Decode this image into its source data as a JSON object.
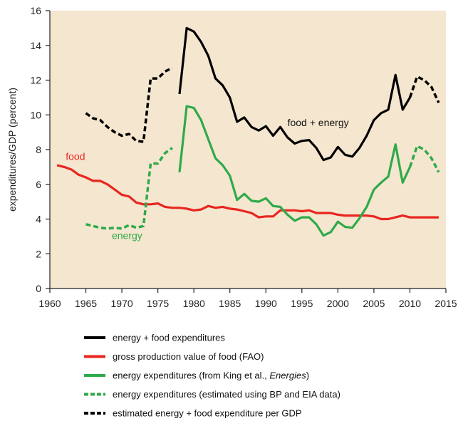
{
  "chart_data": {
    "type": "line",
    "title": "",
    "xlabel": "",
    "ylabel": "expenditures/GDP (percent)",
    "ylim": [
      0,
      16
    ],
    "yticks": [
      0,
      2,
      4,
      6,
      8,
      10,
      12,
      14,
      16
    ],
    "xticks": [
      1960,
      1965,
      1970,
      1975,
      1980,
      1985,
      1990,
      1995,
      2000,
      2005,
      2010,
      2015
    ],
    "xtick_labels": [
      "1960",
      "1965",
      "1970",
      "1975",
      "1980",
      "1985",
      "1990",
      "1995",
      "2000",
      "2005",
      "2010",
      "2015"
    ],
    "plot_background": "#f5e6cf",
    "grid": false,
    "annotations": [
      {
        "id": "food",
        "text": "food",
        "x": 1962.2,
        "y": 7.4,
        "color": "#e8261f"
      },
      {
        "id": "energy",
        "text": "energy",
        "x": 1968.6,
        "y": 2.85,
        "color": "#2eaa4a"
      },
      {
        "id": "food-energy",
        "text": "food + energy",
        "x": 1993,
        "y": 9.35,
        "color": "#111111"
      }
    ],
    "series": [
      {
        "id": "energy-food-solid",
        "name": "energy + food expenditures",
        "color": "#000000",
        "dashed": false,
        "points": [
          [
            1978,
            11.2
          ],
          [
            1979,
            15.0
          ],
          [
            1980,
            14.8
          ],
          [
            1981,
            14.2
          ],
          [
            1982,
            13.4
          ],
          [
            1983,
            12.1
          ],
          [
            1984,
            11.7
          ],
          [
            1985,
            11.0
          ],
          [
            1986,
            9.6
          ],
          [
            1987,
            9.85
          ],
          [
            1988,
            9.3
          ],
          [
            1989,
            9.1
          ],
          [
            1990,
            9.35
          ],
          [
            1991,
            8.8
          ],
          [
            1992,
            9.3
          ],
          [
            1993,
            8.7
          ],
          [
            1994,
            8.35
          ],
          [
            1995,
            8.5
          ],
          [
            1996,
            8.55
          ],
          [
            1997,
            8.1
          ],
          [
            1998,
            7.4
          ],
          [
            1999,
            7.55
          ],
          [
            2000,
            8.15
          ],
          [
            2001,
            7.7
          ],
          [
            2002,
            7.6
          ],
          [
            2003,
            8.1
          ],
          [
            2004,
            8.8
          ],
          [
            2005,
            9.7
          ],
          [
            2006,
            10.1
          ],
          [
            2007,
            10.3
          ],
          [
            2008,
            12.3
          ],
          [
            2009,
            10.3
          ],
          [
            2010,
            11.0
          ]
        ]
      },
      {
        "id": "food-fao",
        "name": "gross production value of food (FAO)",
        "color": "#e8261f",
        "dashed": false,
        "points": [
          [
            1961,
            7.1
          ],
          [
            1962,
            7.0
          ],
          [
            1963,
            6.85
          ],
          [
            1964,
            6.55
          ],
          [
            1965,
            6.4
          ],
          [
            1966,
            6.2
          ],
          [
            1967,
            6.2
          ],
          [
            1968,
            6.0
          ],
          [
            1969,
            5.7
          ],
          [
            1970,
            5.4
          ],
          [
            1971,
            5.3
          ],
          [
            1972,
            4.95
          ],
          [
            1973,
            4.85
          ],
          [
            1974,
            4.85
          ],
          [
            1975,
            4.9
          ],
          [
            1976,
            4.7
          ],
          [
            1977,
            4.65
          ],
          [
            1978,
            4.65
          ],
          [
            1979,
            4.6
          ],
          [
            1980,
            4.5
          ],
          [
            1981,
            4.55
          ],
          [
            1982,
            4.75
          ],
          [
            1983,
            4.65
          ],
          [
            1984,
            4.7
          ],
          [
            1985,
            4.6
          ],
          [
            1986,
            4.55
          ],
          [
            1987,
            4.45
          ],
          [
            1988,
            4.35
          ],
          [
            1989,
            4.1
          ],
          [
            1990,
            4.15
          ],
          [
            1991,
            4.15
          ],
          [
            1992,
            4.5
          ],
          [
            1993,
            4.5
          ],
          [
            1994,
            4.5
          ],
          [
            1995,
            4.45
          ],
          [
            1996,
            4.5
          ],
          [
            1997,
            4.35
          ],
          [
            1998,
            4.35
          ],
          [
            1999,
            4.35
          ],
          [
            2000,
            4.25
          ],
          [
            2001,
            4.2
          ],
          [
            2002,
            4.2
          ],
          [
            2003,
            4.2
          ],
          [
            2004,
            4.2
          ],
          [
            2005,
            4.15
          ],
          [
            2006,
            4.0
          ],
          [
            2007,
            4.0
          ],
          [
            2008,
            4.1
          ],
          [
            2009,
            4.2
          ],
          [
            2010,
            4.1
          ],
          [
            2011,
            4.1
          ],
          [
            2012,
            4.1
          ],
          [
            2013,
            4.1
          ],
          [
            2014,
            4.1
          ]
        ]
      },
      {
        "id": "energy-king",
        "name": "energy expenditures (from King et al., Energies)",
        "color": "#2eaa4a",
        "dashed": false,
        "points": [
          [
            1978,
            6.7
          ],
          [
            1979,
            10.5
          ],
          [
            1980,
            10.4
          ],
          [
            1981,
            9.7
          ],
          [
            1982,
            8.6
          ],
          [
            1983,
            7.5
          ],
          [
            1984,
            7.1
          ],
          [
            1985,
            6.5
          ],
          [
            1986,
            5.1
          ],
          [
            1987,
            5.45
          ],
          [
            1988,
            5.05
          ],
          [
            1989,
            5.0
          ],
          [
            1990,
            5.2
          ],
          [
            1991,
            4.75
          ],
          [
            1992,
            4.7
          ],
          [
            1993,
            4.25
          ],
          [
            1994,
            3.9
          ],
          [
            1995,
            4.1
          ],
          [
            1996,
            4.1
          ],
          [
            1997,
            3.7
          ],
          [
            1998,
            3.05
          ],
          [
            1999,
            3.25
          ],
          [
            2000,
            3.85
          ],
          [
            2001,
            3.55
          ],
          [
            2002,
            3.5
          ],
          [
            2003,
            4.05
          ],
          [
            2004,
            4.7
          ],
          [
            2005,
            5.7
          ],
          [
            2006,
            6.1
          ],
          [
            2007,
            6.45
          ],
          [
            2008,
            8.3
          ],
          [
            2009,
            6.1
          ],
          [
            2010,
            7.0
          ]
        ]
      },
      {
        "id": "energy-bp-eia",
        "name": "energy expenditures (estimated using BP and EIA data)",
        "color": "#2eaa4a",
        "dashed": true,
        "segments": [
          [
            [
              1965,
              3.7
            ],
            [
              1966,
              3.6
            ],
            [
              1967,
              3.5
            ],
            [
              1968,
              3.45
            ],
            [
              1969,
              3.5
            ],
            [
              1970,
              3.45
            ],
            [
              1971,
              3.65
            ],
            [
              1972,
              3.5
            ],
            [
              1973,
              3.6
            ],
            [
              1974,
              7.2
            ],
            [
              1975,
              7.2
            ],
            [
              1976,
              7.8
            ],
            [
              1977,
              8.1
            ]
          ],
          [
            [
              2010,
              7.0
            ],
            [
              2011,
              8.2
            ],
            [
              2012,
              8.0
            ],
            [
              2013,
              7.5
            ],
            [
              2014,
              6.7
            ]
          ]
        ]
      },
      {
        "id": "energy-food-estimated",
        "name": "estimated energy + food expenditure per GDP",
        "color": "#000000",
        "dashed": true,
        "segments": [
          [
            [
              1965,
              10.1
            ],
            [
              1966,
              9.8
            ],
            [
              1967,
              9.7
            ],
            [
              1968,
              9.3
            ],
            [
              1969,
              9.0
            ],
            [
              1970,
              8.8
            ],
            [
              1971,
              8.9
            ],
            [
              1972,
              8.5
            ],
            [
              1973,
              8.45
            ],
            [
              1974,
              12.1
            ],
            [
              1975,
              12.1
            ],
            [
              1976,
              12.5
            ],
            [
              1977,
              12.7
            ]
          ],
          [
            [
              2010,
              11.0
            ],
            [
              2011,
              12.2
            ],
            [
              2012,
              12.0
            ],
            [
              2013,
              11.6
            ],
            [
              2014,
              10.7
            ]
          ]
        ]
      }
    ],
    "legend": {
      "position": "bottom",
      "entries": [
        {
          "series": "energy-food-solid",
          "label": "energy + food expenditures"
        },
        {
          "series": "food-fao",
          "label": "gross production value of food (FAO)"
        },
        {
          "series": "energy-king",
          "label": "energy expenditures (from King et al., ",
          "label_em": "Energies",
          "label_after": ")"
        },
        {
          "series": "energy-bp-eia",
          "label": "energy expenditures (estimated using BP and EIA data)"
        },
        {
          "series": "energy-food-estimated",
          "label": "estimated energy + food expenditure per GDP"
        }
      ]
    }
  }
}
